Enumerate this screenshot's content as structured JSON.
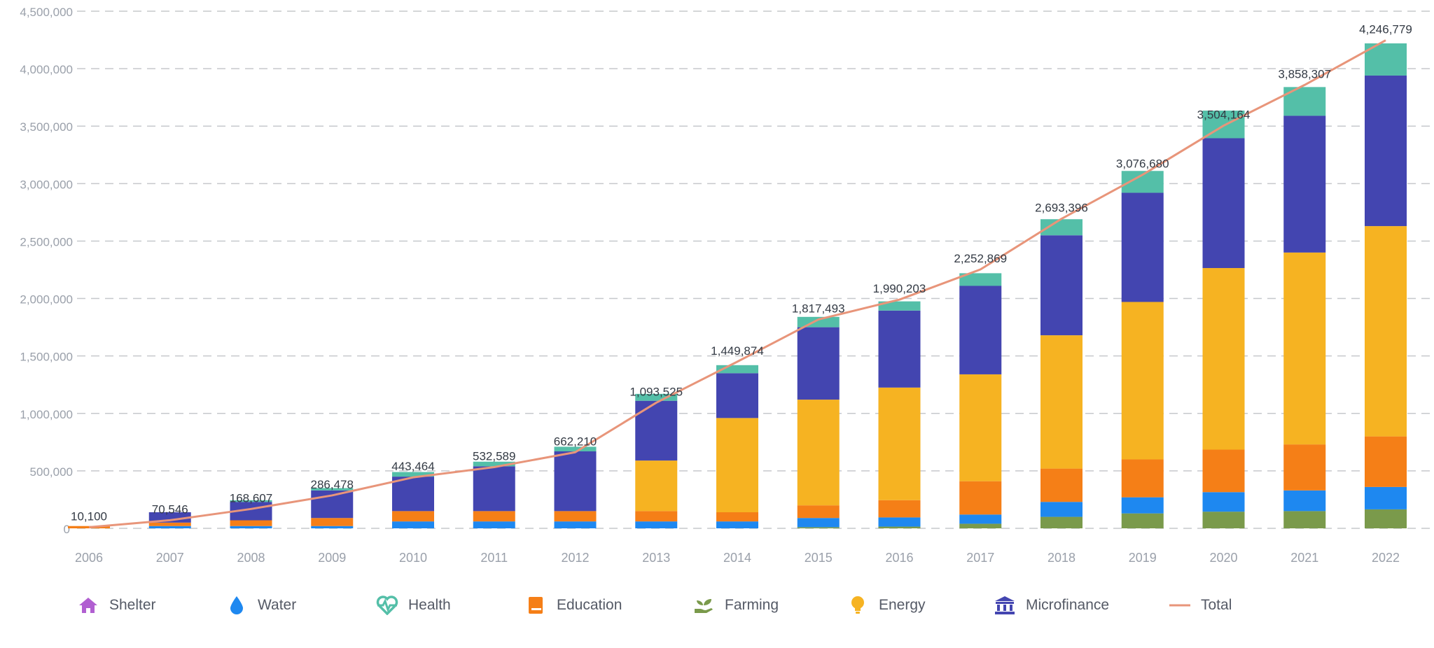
{
  "chart_data": {
    "type": "bar",
    "stacked": true,
    "categories": [
      "2006",
      "2007",
      "2008",
      "2009",
      "2010",
      "2011",
      "2012",
      "2013",
      "2014",
      "2015",
      "2016",
      "2017",
      "2018",
      "2019",
      "2020",
      "2021",
      "2022"
    ],
    "y_ticks": [
      "0",
      "500,000",
      "1,000,000",
      "1,500,000",
      "2,000,000",
      "2,500,000",
      "3,000,000",
      "3,500,000",
      "4,000,000",
      "4,500,000"
    ],
    "ylim": [
      0,
      4500000
    ],
    "grid": true,
    "legend_position": "bottom",
    "series": [
      {
        "name": "Shelter",
        "key": "shelter",
        "color": "#b15fd1",
        "values": [
          0,
          0,
          0,
          0,
          0,
          0,
          0,
          0,
          0,
          0,
          0,
          0,
          0,
          0,
          0,
          0,
          0
        ]
      },
      {
        "name": "Farming",
        "key": "farming",
        "color": "#7a9a4b",
        "values": [
          0,
          0,
          0,
          0,
          0,
          0,
          0,
          0,
          0,
          10000,
          15000,
          40000,
          100000,
          130000,
          145000,
          150000,
          165000
        ]
      },
      {
        "name": "Water",
        "key": "water",
        "color": "#1e88f0",
        "values": [
          0,
          20000,
          20000,
          20000,
          60000,
          60000,
          60000,
          60000,
          60000,
          80000,
          80000,
          80000,
          130000,
          140000,
          170000,
          180000,
          195000
        ]
      },
      {
        "name": "Education",
        "key": "education",
        "color": "#f57f17",
        "values": [
          20000,
          30000,
          50000,
          70000,
          90000,
          90000,
          90000,
          90000,
          80000,
          110000,
          150000,
          290000,
          290000,
          330000,
          370000,
          400000,
          440000
        ]
      },
      {
        "name": "Energy",
        "key": "energy",
        "color": "#f6b322",
        "values": [
          0,
          0,
          0,
          0,
          0,
          0,
          0,
          440000,
          820000,
          920000,
          980000,
          930000,
          1160000,
          1370000,
          1580000,
          1670000,
          1830000
        ]
      },
      {
        "name": "Microfinance",
        "key": "microfinance",
        "color": "#4345b0",
        "values": [
          0,
          90000,
          160000,
          240000,
          300000,
          390000,
          520000,
          520000,
          390000,
          630000,
          670000,
          770000,
          870000,
          950000,
          1130000,
          1190000,
          1310000
        ]
      },
      {
        "name": "Health",
        "key": "health",
        "color": "#54bfa8",
        "values": [
          0,
          0,
          15000,
          20000,
          40000,
          40000,
          40000,
          60000,
          70000,
          90000,
          80000,
          110000,
          140000,
          190000,
          240000,
          250000,
          280000
        ]
      }
    ],
    "total": {
      "name": "Total",
      "color": "#e8957a",
      "values": [
        10100,
        70546,
        168607,
        286478,
        443464,
        532589,
        662210,
        1093525,
        1449874,
        1817493,
        1990203,
        2252869,
        2693396,
        3076680,
        3504164,
        3858307,
        4246779
      ],
      "labels": [
        "10,100",
        "70,546",
        "168,607",
        "286,478",
        "443,464",
        "532,589",
        "662,210",
        "1,093,525",
        "1,449,874",
        "1,817,493",
        "1,990,203",
        "2,252,869",
        "2,693,396",
        "3,076,680",
        "3,504,164",
        "3,858,307",
        "4,246,779"
      ]
    }
  },
  "legend": [
    {
      "label": "Shelter",
      "icon": "house-icon",
      "color": "#b15fd1"
    },
    {
      "label": "Water",
      "icon": "water-drop-icon",
      "color": "#1e88f0"
    },
    {
      "label": "Health",
      "icon": "heartbeat-icon",
      "color": "#54bfa8"
    },
    {
      "label": "Education",
      "icon": "book-icon",
      "color": "#f57f17"
    },
    {
      "label": "Farming",
      "icon": "seedling-hand-icon",
      "color": "#7a9a4b"
    },
    {
      "label": "Energy",
      "icon": "lightbulb-icon",
      "color": "#f6b322"
    },
    {
      "label": "Microfinance",
      "icon": "bank-icon",
      "color": "#4345b0"
    },
    {
      "label": "Total",
      "icon": "line-icon",
      "color": "#e8957a"
    }
  ]
}
